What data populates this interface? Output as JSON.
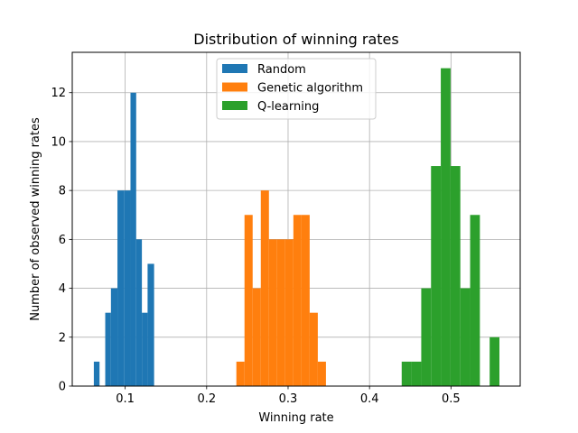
{
  "chart_data": {
    "type": "histogram",
    "title": "Distribution of winning rates",
    "xlabel": "Winning rate",
    "ylabel": "Number of observed winning rates",
    "xlim": [
      0.035,
      0.585
    ],
    "ylim": [
      0,
      13.65
    ],
    "xticks": [
      0.1,
      0.2,
      0.3,
      0.4,
      0.5
    ],
    "xtick_labels": [
      "0.1",
      "0.2",
      "0.3",
      "0.4",
      "0.5"
    ],
    "yticks": [
      0,
      2,
      4,
      6,
      8,
      10,
      12
    ],
    "ytick_labels": [
      "0",
      "2",
      "4",
      "6",
      "8",
      "10",
      "12"
    ],
    "grid": true,
    "legend_position": "top-center",
    "series": [
      {
        "name": "Random",
        "color": "#1f77b4",
        "bins": [
          {
            "x0": 0.0615,
            "x1": 0.0685,
            "count": 1
          },
          {
            "x0": 0.0685,
            "x1": 0.0755,
            "count": 0
          },
          {
            "x0": 0.0755,
            "x1": 0.0825,
            "count": 3
          },
          {
            "x0": 0.0825,
            "x1": 0.0905,
            "count": 4
          },
          {
            "x0": 0.0905,
            "x1": 0.0985,
            "count": 8
          },
          {
            "x0": 0.0985,
            "x1": 0.1065,
            "count": 8
          },
          {
            "x0": 0.1065,
            "x1": 0.1135,
            "count": 12
          },
          {
            "x0": 0.1135,
            "x1": 0.1205,
            "count": 6
          },
          {
            "x0": 0.1205,
            "x1": 0.1275,
            "count": 3
          },
          {
            "x0": 0.1275,
            "x1": 0.1355,
            "count": 5
          }
        ]
      },
      {
        "name": "Genetic algorithm",
        "color": "#ff7f0e",
        "bins": [
          {
            "x0": 0.2365,
            "x1": 0.2465,
            "count": 1
          },
          {
            "x0": 0.2465,
            "x1": 0.2565,
            "count": 7
          },
          {
            "x0": 0.2565,
            "x1": 0.2665,
            "count": 4
          },
          {
            "x0": 0.2665,
            "x1": 0.2765,
            "count": 8
          },
          {
            "x0": 0.2765,
            "x1": 0.2865,
            "count": 6
          },
          {
            "x0": 0.2865,
            "x1": 0.2965,
            "count": 6
          },
          {
            "x0": 0.2965,
            "x1": 0.3065,
            "count": 6
          },
          {
            "x0": 0.3065,
            "x1": 0.3165,
            "count": 7
          },
          {
            "x0": 0.3165,
            "x1": 0.3265,
            "count": 7
          },
          {
            "x0": 0.3265,
            "x1": 0.3365,
            "count": 3
          },
          {
            "x0": 0.3365,
            "x1": 0.3465,
            "count": 1
          }
        ]
      },
      {
        "name": "Q-learning",
        "color": "#2ca02c",
        "bins": [
          {
            "x0": 0.4395,
            "x1": 0.4515,
            "count": 1
          },
          {
            "x0": 0.4515,
            "x1": 0.4635,
            "count": 1
          },
          {
            "x0": 0.4635,
            "x1": 0.4755,
            "count": 4
          },
          {
            "x0": 0.4755,
            "x1": 0.4875,
            "count": 9
          },
          {
            "x0": 0.4875,
            "x1": 0.4995,
            "count": 13
          },
          {
            "x0": 0.4995,
            "x1": 0.5115,
            "count": 9
          },
          {
            "x0": 0.5115,
            "x1": 0.5235,
            "count": 4
          },
          {
            "x0": 0.5235,
            "x1": 0.5355,
            "count": 7
          },
          {
            "x0": 0.5355,
            "x1": 0.5475,
            "count": 0
          },
          {
            "x0": 0.5475,
            "x1": 0.5595,
            "count": 2
          }
        ]
      }
    ]
  }
}
